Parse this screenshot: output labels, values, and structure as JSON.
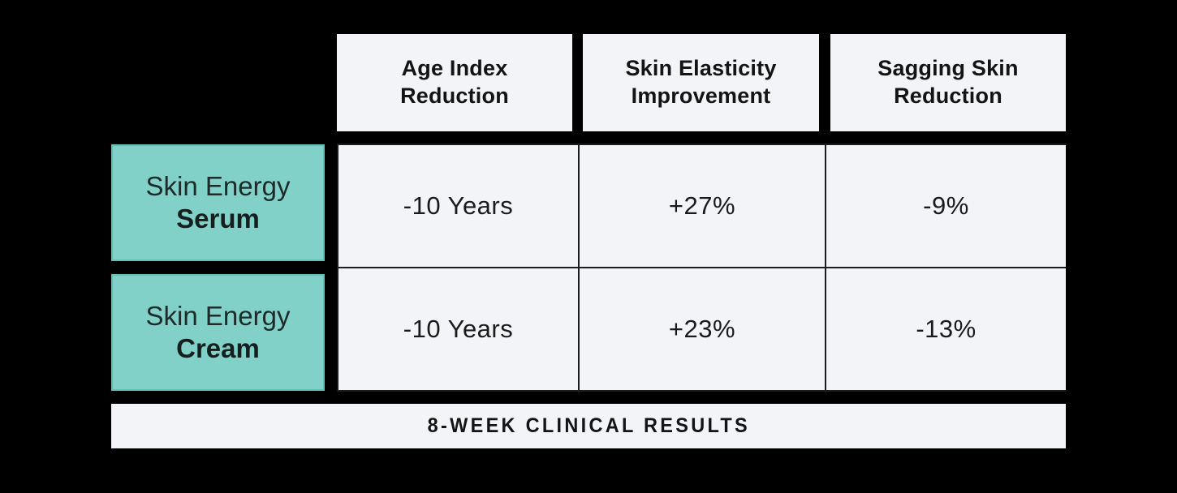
{
  "colors": {
    "background": "#000000",
    "cell_background": "#f3f4f8",
    "accent_teal": "#82d1c8",
    "accent_teal_border": "#5fc2b7",
    "text_dark": "#141414"
  },
  "table": {
    "columns": [
      {
        "label": "Age Index\nReduction"
      },
      {
        "label": "Skin Elasticity\nImprovement"
      },
      {
        "label": "Sagging Skin\nReduction"
      }
    ],
    "rows": [
      {
        "brand": "Skin Energy",
        "product": "Serum",
        "values": [
          "-10 Years",
          "+27%",
          "-9%"
        ]
      },
      {
        "brand": "Skin Energy",
        "product": "Cream",
        "values": [
          "-10 Years",
          "+23%",
          "-13%"
        ]
      }
    ]
  },
  "footer": {
    "label": "8-WEEK CLINICAL RESULTS"
  },
  "chart_data": {
    "type": "table",
    "title": "8-WEEK CLINICAL RESULTS",
    "columns": [
      "Age Index Reduction",
      "Skin Elasticity Improvement",
      "Sagging Skin Reduction"
    ],
    "row_labels": [
      "Skin Energy Serum",
      "Skin Energy Cream"
    ],
    "cells": [
      [
        "-10 Years",
        "+27%",
        "-9%"
      ],
      [
        "-10 Years",
        "+23%",
        "-13%"
      ]
    ],
    "numeric": {
      "age_index_reduction_years": [
        -10,
        -10
      ],
      "skin_elasticity_improvement_pct": [
        27,
        23
      ],
      "sagging_skin_reduction_pct": [
        -9,
        -13
      ]
    },
    "layout_hints": {
      "row_header_color": "#82d1c8",
      "cell_color": "#f3f4f8",
      "background": "#000000",
      "grid": "thin dark dividers between data cells"
    }
  }
}
